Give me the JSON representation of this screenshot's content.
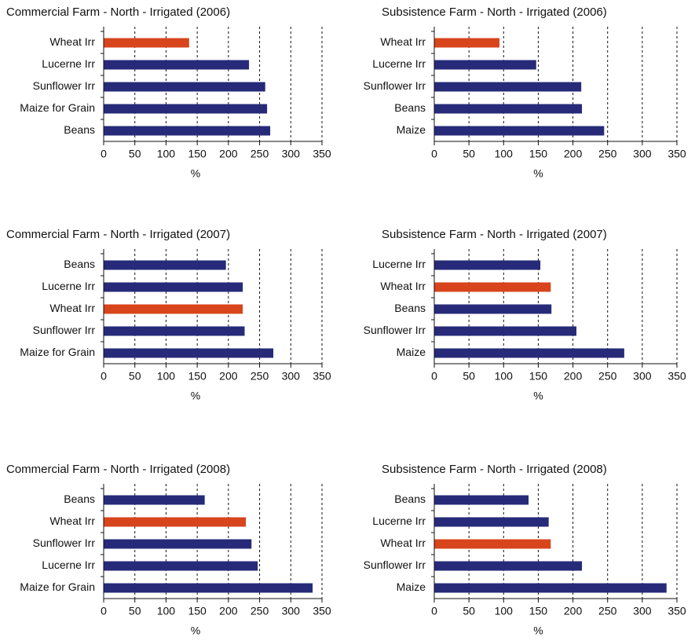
{
  "chart_data": [
    {
      "type": "bar",
      "orientation": "horizontal",
      "title": "Commercial Farm - North - Irrigated (2006)",
      "categories": [
        "Wheat Irr",
        "Lucerne Irr",
        "Sunflower Irr",
        "Maize for Grain",
        "Beans"
      ],
      "values": [
        137,
        233,
        259,
        262,
        267
      ],
      "colors": [
        "#d8441c",
        "#262a78",
        "#262a78",
        "#262a78",
        "#262a78"
      ],
      "xlabel": "%",
      "xlim": [
        0,
        350
      ],
      "xticks": [
        0,
        50,
        100,
        150,
        200,
        250,
        300,
        350
      ],
      "grid": true
    },
    {
      "type": "bar",
      "orientation": "horizontal",
      "title": "Subsistence Farm - North - Irrigated (2006)",
      "categories": [
        "Wheat Irr",
        "Lucerne Irr",
        "Sunflower Irr",
        "Beans",
        "Maize"
      ],
      "values": [
        94,
        147,
        212,
        213,
        245
      ],
      "colors": [
        "#d8441c",
        "#262a78",
        "#262a78",
        "#262a78",
        "#262a78"
      ],
      "xlabel": "%",
      "xlim": [
        0,
        350
      ],
      "xticks": [
        0,
        50,
        100,
        150,
        200,
        250,
        300,
        350
      ],
      "grid": true
    },
    {
      "type": "bar",
      "orientation": "horizontal",
      "title": "Commercial Farm - North - Irrigated  (2007)",
      "categories": [
        "Beans",
        "Lucerne Irr",
        "Wheat Irr",
        "Sunflower Irr",
        "Maize for Grain"
      ],
      "values": [
        196,
        223,
        223,
        226,
        272
      ],
      "colors": [
        "#262a78",
        "#262a78",
        "#d8441c",
        "#262a78",
        "#262a78"
      ],
      "xlabel": "%",
      "xlim": [
        0,
        350
      ],
      "xticks": [
        0,
        50,
        100,
        150,
        200,
        250,
        300,
        350
      ],
      "grid": true
    },
    {
      "type": "bar",
      "orientation": "horizontal",
      "title": "Subsistence Farm - North - Irrigated (2007)",
      "categories": [
        "Lucerne Irr",
        "Wheat Irr",
        "Beans",
        "Sunflower Irr",
        "Maize"
      ],
      "values": [
        153,
        168,
        169,
        205,
        274
      ],
      "colors": [
        "#262a78",
        "#d8441c",
        "#262a78",
        "#262a78",
        "#262a78"
      ],
      "xlabel": "%",
      "xlim": [
        0,
        350
      ],
      "xticks": [
        0,
        50,
        100,
        150,
        200,
        250,
        300,
        350
      ],
      "grid": true
    },
    {
      "type": "bar",
      "orientation": "horizontal",
      "title": "Commercial Farm - North - Irrigated (2008)",
      "categories": [
        "Beans",
        "Wheat Irr",
        "Sunflower Irr",
        "Lucerne Irr",
        "Maize for Grain"
      ],
      "values": [
        162,
        228,
        237,
        247,
        335
      ],
      "colors": [
        "#262a78",
        "#d8441c",
        "#262a78",
        "#262a78",
        "#262a78"
      ],
      "xlabel": "%",
      "xlim": [
        0,
        350
      ],
      "xticks": [
        0,
        50,
        100,
        150,
        200,
        250,
        300,
        350
      ],
      "grid": true
    },
    {
      "type": "bar",
      "orientation": "horizontal",
      "title": "Subsistence Farm - North - Irrigated (2008)",
      "categories": [
        "Beans",
        "Lucerne Irr",
        "Wheat Irr",
        "Sunflower Irr",
        "Maize"
      ],
      "values": [
        136,
        165,
        168,
        213,
        335
      ],
      "colors": [
        "#262a78",
        "#262a78",
        "#d8441c",
        "#262a78",
        "#262a78"
      ],
      "xlabel": "%",
      "xlim": [
        0,
        350
      ],
      "xticks": [
        0,
        50,
        100,
        150,
        200,
        250,
        300,
        350
      ],
      "grid": true
    }
  ]
}
